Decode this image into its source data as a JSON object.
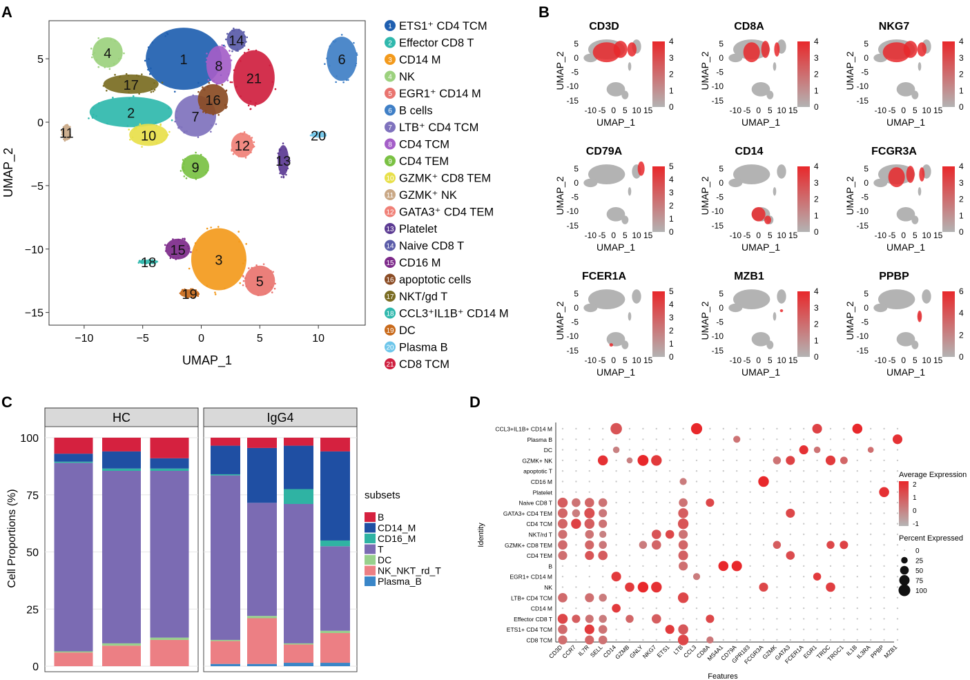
{
  "panel_letters": [
    "A",
    "B",
    "C",
    "D"
  ],
  "chart_data": [
    {
      "id": "A",
      "type": "scatter",
      "title": "",
      "xlabel": "UMAP_1",
      "ylabel": "UMAP_2",
      "xlim": [
        -13,
        14
      ],
      "ylim": [
        -16,
        8
      ],
      "xticks": [
        -10,
        -5,
        0,
        5,
        10
      ],
      "yticks": [
        5,
        0,
        -5,
        -10,
        -15
      ],
      "clusters": [
        {
          "id": "1",
          "label": "ETS1⁺ CD4 TCM",
          "color": "#1f5fb0",
          "x": -1.5,
          "y": 5.0
        },
        {
          "id": "2",
          "label": "Effector CD8 T",
          "color": "#2fb8ad",
          "x": -6.0,
          "y": 0.8
        },
        {
          "id": "3",
          "label": "CD14 M",
          "color": "#f39a1c",
          "x": 1.5,
          "y": -10.8
        },
        {
          "id": "4",
          "label": "NK",
          "color": "#9cd17e",
          "x": -8.0,
          "y": 5.5
        },
        {
          "id": "5",
          "label": "EGR1⁺ CD14 M",
          "color": "#e9746f",
          "x": 5.0,
          "y": -12.5
        },
        {
          "id": "6",
          "label": "B cells",
          "color": "#3f7fc6",
          "x": 12.0,
          "y": 5.0
        },
        {
          "id": "7",
          "label": "LTB⁺ CD4 TCM",
          "color": "#7f72bd",
          "x": -0.5,
          "y": 0.5
        },
        {
          "id": "8",
          "label": "CD4 TCM",
          "color": "#a45ec8",
          "x": 1.5,
          "y": 4.5
        },
        {
          "id": "9",
          "label": "CD4 TEM",
          "color": "#7ac143",
          "x": -0.5,
          "y": -3.5
        },
        {
          "id": "10",
          "label": "GZMK⁺ CD8 TEM",
          "color": "#e8e04a",
          "x": -4.5,
          "y": -1.0
        },
        {
          "id": "11",
          "label": "GZMK⁺ NK",
          "color": "#c9a886",
          "x": -11.5,
          "y": -0.8
        },
        {
          "id": "12",
          "label": "GATA3⁺ CD4 TEM",
          "color": "#f08077",
          "x": 3.5,
          "y": -1.8
        },
        {
          "id": "13",
          "label": "Platelet",
          "color": "#5b3a92",
          "x": 7.0,
          "y": -3.0
        },
        {
          "id": "14",
          "label": "Naive CD8 T",
          "color": "#5a5ba8",
          "x": 3.0,
          "y": 6.5
        },
        {
          "id": "15",
          "label": "CD16 M",
          "color": "#7d2a8a",
          "x": -2.0,
          "y": -10.0
        },
        {
          "id": "16",
          "label": "apoptotic cells",
          "color": "#8a4b23",
          "x": 1.0,
          "y": 1.8
        },
        {
          "id": "17",
          "label": "NKT/gd T",
          "color": "#7a6c22",
          "x": -6.0,
          "y": 3.0
        },
        {
          "id": "18",
          "label": "CCL3⁺IL1B⁺ CD14 M",
          "color": "#2fb8ad",
          "x": -4.5,
          "y": -11.0
        },
        {
          "id": "19",
          "label": "DC",
          "color": "#c86a1b",
          "x": -1.0,
          "y": -13.5
        },
        {
          "id": "20",
          "label": "Plasma B",
          "color": "#6ec6ea",
          "x": 10.0,
          "y": -1.0
        },
        {
          "id": "21",
          "label": "CD8 TCM",
          "color": "#cf1f3f",
          "x": 4.5,
          "y": 3.5
        }
      ]
    },
    {
      "id": "B",
      "type": "scatter",
      "xlabel": "UMAP_1",
      "ylabel": "UMAP_2",
      "xticks": [
        -10,
        -5,
        0,
        5,
        10,
        15
      ],
      "yticks": [
        5,
        0,
        -5,
        -10,
        -15
      ],
      "color_low": "#b3b3b3",
      "color_high": "#e8282b",
      "genes": [
        {
          "name": "CD3D",
          "scale_max": 4,
          "ticks": [
            4,
            3,
            2,
            1,
            0
          ],
          "hot": [
            "tcells"
          ]
        },
        {
          "name": "CD8A",
          "scale_max": 4,
          "ticks": [
            4,
            3,
            2,
            1,
            0
          ],
          "hot": [
            "tcells_partial"
          ]
        },
        {
          "name": "NKG7",
          "scale_max": 4,
          "ticks": [
            4,
            3,
            2,
            1,
            0
          ],
          "hot": [
            "nk"
          ]
        },
        {
          "name": "CD79A",
          "scale_max": 5,
          "ticks": [
            5,
            4,
            3,
            2,
            1,
            0
          ],
          "hot": [
            "bcells"
          ]
        },
        {
          "name": "CD14",
          "scale_max": 4,
          "ticks": [
            4,
            3,
            2,
            1,
            0
          ],
          "hot": [
            "mono"
          ]
        },
        {
          "name": "FCGR3A",
          "scale_max": 4,
          "ticks": [
            4,
            3,
            2,
            1,
            0
          ],
          "hot": [
            "nk_partial",
            "cd16"
          ]
        },
        {
          "name": "FCER1A",
          "scale_max": 5,
          "ticks": [
            5,
            4,
            3,
            2,
            1,
            0
          ],
          "hot": [
            "dc"
          ]
        },
        {
          "name": "MZB1",
          "scale_max": 4,
          "ticks": [
            4,
            3,
            2,
            1,
            0
          ],
          "hot": [
            "plasma"
          ]
        },
        {
          "name": "PPBP",
          "scale_max": 6,
          "ticks": [
            6,
            4,
            2,
            0
          ],
          "hot": [
            "platelet"
          ]
        }
      ]
    },
    {
      "id": "C",
      "type": "bar",
      "ylabel": "Cell Proportions (%)",
      "ylim": [
        0,
        100
      ],
      "yticks": [
        100,
        75,
        50,
        25,
        0
      ],
      "legend_title": "subsets",
      "subsets": [
        {
          "name": "B",
          "color": "#d5213f"
        },
        {
          "name": "CD14_M",
          "color": "#1f4fa3"
        },
        {
          "name": "CD16_M",
          "color": "#2fb3a3"
        },
        {
          "name": "T",
          "color": "#7b6bb3"
        },
        {
          "name": "DC",
          "color": "#98d08c"
        },
        {
          "name": "NK_NKT_rd_T",
          "color": "#ec7f84"
        },
        {
          "name": "Plasma_B",
          "color": "#3a86c8"
        }
      ],
      "groups": [
        {
          "name": "HC",
          "samples": [
            {
              "B": 7,
              "CD14_M": 3.5,
              "CD16_M": 0.5,
              "T": 82.5,
              "DC": 0.5,
              "NK_NKT_rd_T": 6,
              "Plasma_B": 0
            },
            {
              "B": 6,
              "CD14_M": 7.5,
              "CD16_M": 1,
              "T": 75.5,
              "DC": 1,
              "NK_NKT_rd_T": 9,
              "Plasma_B": 0
            },
            {
              "B": 9,
              "CD14_M": 4.5,
              "CD16_M": 1,
              "T": 73,
              "DC": 1,
              "NK_NKT_rd_T": 11.5,
              "Plasma_B": 0
            }
          ]
        },
        {
          "name": "IgG4",
          "samples": [
            {
              "B": 3.5,
              "CD14_M": 12.5,
              "CD16_M": 0.5,
              "T": 72,
              "DC": 0.5,
              "NK_NKT_rd_T": 10,
              "Plasma_B": 1
            },
            {
              "B": 4.5,
              "CD14_M": 24,
              "CD16_M": 0,
              "T": 49.5,
              "DC": 1,
              "NK_NKT_rd_T": 20,
              "Plasma_B": 1
            },
            {
              "B": 3.5,
              "CD14_M": 19,
              "CD16_M": 6.5,
              "T": 61,
              "DC": 0.5,
              "NK_NKT_rd_T": 8,
              "Plasma_B": 1.5
            },
            {
              "B": 6,
              "CD14_M": 39,
              "CD16_M": 2.5,
              "T": 37,
              "DC": 1,
              "NK_NKT_rd_T": 13,
              "Plasma_B": 1.5
            }
          ]
        }
      ]
    },
    {
      "id": "D",
      "type": "dotplot",
      "xlabel": "Features",
      "ylabel": "Identity",
      "features": [
        "CD3D",
        "CCR7",
        "IL7R",
        "SELL",
        "CD14",
        "GZMB",
        "GNLY",
        "NKG7",
        "ETS1",
        "LTB",
        "CCL3",
        "CD8A",
        "MS4A1",
        "CD79A",
        "GPR183",
        "FCGR3A",
        "GZMK",
        "GATA3",
        "FCER1A",
        "EGR1",
        "TRDC",
        "TRGC1",
        "IL1B",
        "IL3RA",
        "PPBP",
        "MZB1"
      ],
      "identities": [
        "CCL3+IL1B+ CD14 M",
        "Plasma B",
        "DC",
        "GZMK+ NK",
        "apoptotic T",
        "CD16 M",
        "Platelet",
        "Naive CD8 T",
        "GATA3+ CD4 TEM",
        "CD4 TCM",
        "NKT/rd T",
        "GZMK+ CD8 TEM",
        "CD4 TEM",
        "B",
        "EGR1+ CD14 M",
        "NK",
        "LTB+ CD4 TCM",
        "CD14 M",
        "Effector CD8 T",
        "ETS1+ CD4 TCM",
        "CD8 TCM"
      ],
      "color_legend_title": "Average Expression",
      "color_ticks": [
        2,
        1,
        0,
        -1
      ],
      "size_legend_title": "Percent Expressed",
      "size_ticks": [
        0,
        25,
        50,
        75,
        100
      ],
      "color_low": "#b5b5b5",
      "color_high": "#e8282b",
      "dots": [
        [
          0,
          4,
          95,
          1.2
        ],
        [
          0,
          10,
          90,
          2.2
        ],
        [
          0,
          19,
          65,
          1.6
        ],
        [
          0,
          22,
          70,
          2.2
        ],
        [
          1,
          13,
          30,
          0.5
        ],
        [
          1,
          25,
          65,
          2
        ],
        [
          2,
          4,
          25,
          0.2
        ],
        [
          2,
          18,
          55,
          2
        ],
        [
          2,
          19,
          25,
          0.5
        ],
        [
          2,
          23,
          20,
          0.6
        ],
        [
          3,
          3,
          70,
          2
        ],
        [
          3,
          5,
          20,
          0.2
        ],
        [
          3,
          6,
          85,
          2.2
        ],
        [
          3,
          7,
          80,
          1.8
        ],
        [
          3,
          16,
          40,
          0.5
        ],
        [
          3,
          17,
          55,
          1.6
        ],
        [
          3,
          20,
          65,
          1.8
        ],
        [
          3,
          21,
          35,
          0.8
        ],
        [
          5,
          15,
          80,
          2.2
        ],
        [
          5,
          9,
          30,
          0.3
        ],
        [
          6,
          24,
          70,
          2
        ],
        [
          7,
          0,
          70,
          1
        ],
        [
          7,
          1,
          50,
          0.5
        ],
        [
          7,
          2,
          60,
          0.8
        ],
        [
          7,
          3,
          50,
          0.5
        ],
        [
          7,
          9,
          50,
          0.5
        ],
        [
          7,
          11,
          45,
          1.5
        ],
        [
          8,
          0,
          65,
          0.8
        ],
        [
          8,
          1,
          40,
          0.3
        ],
        [
          8,
          2,
          75,
          1.3
        ],
        [
          8,
          3,
          45,
          0.4
        ],
        [
          8,
          9,
          70,
          1
        ],
        [
          8,
          17,
          55,
          1.5
        ],
        [
          9,
          0,
          65,
          0.8
        ],
        [
          9,
          1,
          70,
          1.6
        ],
        [
          9,
          2,
          70,
          1
        ],
        [
          9,
          3,
          45,
          0.5
        ],
        [
          9,
          9,
          80,
          1.2
        ],
        [
          10,
          0,
          55,
          0.6
        ],
        [
          10,
          2,
          50,
          0.5
        ],
        [
          10,
          3,
          30,
          0.2
        ],
        [
          10,
          7,
          60,
          1.2
        ],
        [
          10,
          8,
          50,
          1.5
        ],
        [
          10,
          9,
          55,
          0.5
        ],
        [
          11,
          0,
          60,
          0.7
        ],
        [
          11,
          2,
          55,
          0.8
        ],
        [
          11,
          3,
          40,
          0.4
        ],
        [
          11,
          6,
          40,
          0.3
        ],
        [
          11,
          7,
          60,
          0.8
        ],
        [
          11,
          9,
          60,
          0.8
        ],
        [
          11,
          16,
          40,
          1.0
        ],
        [
          11,
          20,
          40,
          1.5
        ],
        [
          11,
          21,
          45,
          1.6
        ],
        [
          12,
          0,
          55,
          0.6
        ],
        [
          12,
          2,
          55,
          1.2
        ],
        [
          12,
          3,
          60,
          1.0
        ],
        [
          12,
          9,
          65,
          0.9
        ],
        [
          12,
          17,
          50,
          1.4
        ],
        [
          13,
          9,
          55,
          0.6
        ],
        [
          13,
          12,
          70,
          2.2
        ],
        [
          13,
          13,
          75,
          2.2
        ],
        [
          14,
          4,
          65,
          1.8
        ],
        [
          14,
          19,
          40,
          1.8
        ],
        [
          14,
          10,
          30,
          0.3
        ],
        [
          15,
          5,
          60,
          1.8
        ],
        [
          15,
          6,
          80,
          2.2
        ],
        [
          15,
          7,
          80,
          2.0
        ],
        [
          15,
          15,
          55,
          1.5
        ],
        [
          15,
          20,
          60,
          1.7
        ],
        [
          16,
          0,
          60,
          0.7
        ],
        [
          16,
          2,
          55,
          0.6
        ],
        [
          16,
          3,
          40,
          0.3
        ],
        [
          16,
          9,
          80,
          1.5
        ],
        [
          17,
          4,
          50,
          1.8
        ],
        [
          18,
          0,
          70,
          1.5
        ],
        [
          18,
          1,
          45,
          1.0
        ],
        [
          18,
          2,
          45,
          0.5
        ],
        [
          18,
          3,
          40,
          0.3
        ],
        [
          18,
          5,
          40,
          0.8
        ],
        [
          18,
          7,
          60,
          1.0
        ],
        [
          18,
          11,
          45,
          1.5
        ],
        [
          19,
          0,
          60,
          0.7
        ],
        [
          19,
          2,
          65,
          1.8
        ],
        [
          19,
          3,
          50,
          0.5
        ],
        [
          19,
          8,
          55,
          1.8
        ],
        [
          19,
          9,
          70,
          1.1
        ],
        [
          20,
          0,
          55,
          0.6
        ],
        [
          20,
          2,
          55,
          0.8
        ],
        [
          20,
          3,
          50,
          0.5
        ],
        [
          20,
          9,
          80,
          1.5
        ],
        [
          20,
          11,
          30,
          0.4
        ]
      ]
    }
  ]
}
